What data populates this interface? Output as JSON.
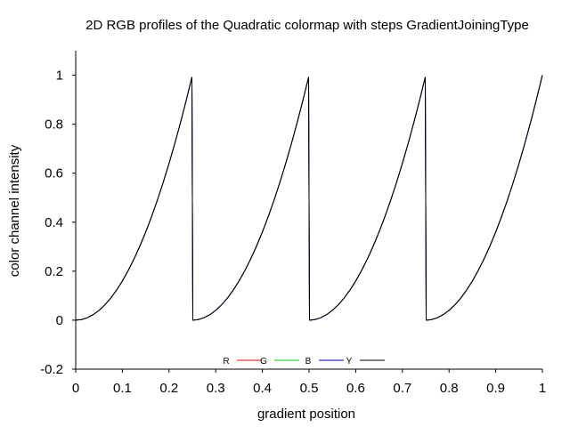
{
  "chart_data": {
    "type": "line",
    "title": "2D RGB profiles of the Quadratic colormap with steps GradientJoiningType",
    "xlabel": "gradient position",
    "ylabel": "color channel intensity",
    "xlim": [
      0,
      1
    ],
    "ylim": [
      -0.2,
      1.1
    ],
    "x_ticks": [
      "0",
      "0.1",
      "0.2",
      "0.3",
      "0.4",
      "0.5",
      "0.6",
      "0.7",
      "0.8",
      "0.9",
      "1"
    ],
    "y_ticks": [
      "-0.2",
      "0",
      "0.2",
      "0.4",
      "0.6",
      "0.8",
      "1"
    ],
    "x_tick_values": [
      0,
      0.1,
      0.2,
      0.3,
      0.4,
      0.5,
      0.6,
      0.7,
      0.8,
      0.9,
      1
    ],
    "y_tick_values": [
      -0.2,
      0,
      0.2,
      0.4,
      0.6,
      0.8,
      1
    ],
    "grid": false,
    "legend_placement": "bottom-center",
    "series": [
      {
        "name": "R",
        "color": "#ff0000",
        "x": [
          0,
          0.0125,
          0.025,
          0.0375,
          0.05,
          0.0625,
          0.075,
          0.0875,
          0.1,
          0.1125,
          0.125,
          0.1375,
          0.15,
          0.1625,
          0.175,
          0.1875,
          0.2,
          0.2125,
          0.225,
          0.2375,
          0.249,
          0.251,
          0.2625,
          0.275,
          0.2875,
          0.3,
          0.3125,
          0.325,
          0.3375,
          0.35,
          0.3625,
          0.375,
          0.3875,
          0.4,
          0.4125,
          0.425,
          0.4375,
          0.45,
          0.4625,
          0.475,
          0.4875,
          0.499,
          0.501,
          0.5125,
          0.525,
          0.5375,
          0.55,
          0.5625,
          0.575,
          0.5875,
          0.6,
          0.6125,
          0.625,
          0.6375,
          0.65,
          0.6625,
          0.675,
          0.6875,
          0.7,
          0.7125,
          0.725,
          0.7375,
          0.749,
          0.751,
          0.7625,
          0.775,
          0.7875,
          0.8,
          0.8125,
          0.825,
          0.8375,
          0.85,
          0.8625,
          0.875,
          0.8875,
          0.9,
          0.9125,
          0.925,
          0.9375,
          0.95,
          0.9625,
          0.975,
          0.9875,
          1
        ],
        "y": [
          0,
          0.0025,
          0.01,
          0.0225,
          0.04,
          0.0625,
          0.09,
          0.1225,
          0.16,
          0.2025,
          0.25,
          0.3025,
          0.36,
          0.4225,
          0.49,
          0.5625,
          0.64,
          0.7225,
          0.81,
          0.9025,
          0.992,
          0,
          0.0025,
          0.01,
          0.0225,
          0.04,
          0.0625,
          0.09,
          0.1225,
          0.16,
          0.2025,
          0.25,
          0.3025,
          0.36,
          0.4225,
          0.49,
          0.5625,
          0.64,
          0.7225,
          0.81,
          0.9025,
          0.992,
          0,
          0.0025,
          0.01,
          0.0225,
          0.04,
          0.0625,
          0.09,
          0.1225,
          0.16,
          0.2025,
          0.25,
          0.3025,
          0.36,
          0.4225,
          0.49,
          0.5625,
          0.64,
          0.7225,
          0.81,
          0.9025,
          0.992,
          0,
          0.0025,
          0.01,
          0.0225,
          0.04,
          0.0625,
          0.09,
          0.1225,
          0.16,
          0.2025,
          0.25,
          0.3025,
          0.36,
          0.4225,
          0.49,
          0.5625,
          0.64,
          0.7225,
          0.81,
          0.9025,
          1
        ]
      },
      {
        "name": "G",
        "color": "#00cc00",
        "x": [
          0,
          0.0125,
          0.025,
          0.0375,
          0.05,
          0.0625,
          0.075,
          0.0875,
          0.1,
          0.1125,
          0.125,
          0.1375,
          0.15,
          0.1625,
          0.175,
          0.1875,
          0.2,
          0.2125,
          0.225,
          0.2375,
          0.249,
          0.251,
          0.2625,
          0.275,
          0.2875,
          0.3,
          0.3125,
          0.325,
          0.3375,
          0.35,
          0.3625,
          0.375,
          0.3875,
          0.4,
          0.4125,
          0.425,
          0.4375,
          0.45,
          0.4625,
          0.475,
          0.4875,
          0.499,
          0.501,
          0.5125,
          0.525,
          0.5375,
          0.55,
          0.5625,
          0.575,
          0.5875,
          0.6,
          0.6125,
          0.625,
          0.6375,
          0.65,
          0.6625,
          0.675,
          0.6875,
          0.7,
          0.7125,
          0.725,
          0.7375,
          0.749,
          0.751,
          0.7625,
          0.775,
          0.7875,
          0.8,
          0.8125,
          0.825,
          0.8375,
          0.85,
          0.8625,
          0.875,
          0.8875,
          0.9,
          0.9125,
          0.925,
          0.9375,
          0.95,
          0.9625,
          0.975,
          0.9875,
          1
        ],
        "y": [
          0,
          0.0025,
          0.01,
          0.0225,
          0.04,
          0.0625,
          0.09,
          0.1225,
          0.16,
          0.2025,
          0.25,
          0.3025,
          0.36,
          0.4225,
          0.49,
          0.5625,
          0.64,
          0.7225,
          0.81,
          0.9025,
          0.992,
          0,
          0.0025,
          0.01,
          0.0225,
          0.04,
          0.0625,
          0.09,
          0.1225,
          0.16,
          0.2025,
          0.25,
          0.3025,
          0.36,
          0.4225,
          0.49,
          0.5625,
          0.64,
          0.7225,
          0.81,
          0.9025,
          0.992,
          0,
          0.0025,
          0.01,
          0.0225,
          0.04,
          0.0625,
          0.09,
          0.1225,
          0.16,
          0.2025,
          0.25,
          0.3025,
          0.36,
          0.4225,
          0.49,
          0.5625,
          0.64,
          0.7225,
          0.81,
          0.9025,
          0.992,
          0,
          0.0025,
          0.01,
          0.0225,
          0.04,
          0.0625,
          0.09,
          0.1225,
          0.16,
          0.2025,
          0.25,
          0.3025,
          0.36,
          0.4225,
          0.49,
          0.5625,
          0.64,
          0.7225,
          0.81,
          0.9025,
          1
        ]
      },
      {
        "name": "B",
        "color": "#0000cc",
        "x": [
          0,
          0.0125,
          0.025,
          0.0375,
          0.05,
          0.0625,
          0.075,
          0.0875,
          0.1,
          0.1125,
          0.125,
          0.1375,
          0.15,
          0.1625,
          0.175,
          0.1875,
          0.2,
          0.2125,
          0.225,
          0.2375,
          0.249,
          0.251,
          0.2625,
          0.275,
          0.2875,
          0.3,
          0.3125,
          0.325,
          0.3375,
          0.35,
          0.3625,
          0.375,
          0.3875,
          0.4,
          0.4125,
          0.425,
          0.4375,
          0.45,
          0.4625,
          0.475,
          0.4875,
          0.499,
          0.501,
          0.5125,
          0.525,
          0.5375,
          0.55,
          0.5625,
          0.575,
          0.5875,
          0.6,
          0.6125,
          0.625,
          0.6375,
          0.65,
          0.6625,
          0.675,
          0.6875,
          0.7,
          0.7125,
          0.725,
          0.7375,
          0.749,
          0.751,
          0.7625,
          0.775,
          0.7875,
          0.8,
          0.8125,
          0.825,
          0.8375,
          0.85,
          0.8625,
          0.875,
          0.8875,
          0.9,
          0.9125,
          0.925,
          0.9375,
          0.95,
          0.9625,
          0.975,
          0.9875,
          1
        ],
        "y": [
          0,
          0.0025,
          0.01,
          0.0225,
          0.04,
          0.0625,
          0.09,
          0.1225,
          0.16,
          0.2025,
          0.25,
          0.3025,
          0.36,
          0.4225,
          0.49,
          0.5625,
          0.64,
          0.7225,
          0.81,
          0.9025,
          0.992,
          0,
          0.0025,
          0.01,
          0.0225,
          0.04,
          0.0625,
          0.09,
          0.1225,
          0.16,
          0.2025,
          0.25,
          0.3025,
          0.36,
          0.4225,
          0.49,
          0.5625,
          0.64,
          0.7225,
          0.81,
          0.9025,
          0.992,
          0,
          0.0025,
          0.01,
          0.0225,
          0.04,
          0.0625,
          0.09,
          0.1225,
          0.16,
          0.2025,
          0.25,
          0.3025,
          0.36,
          0.4225,
          0.49,
          0.5625,
          0.64,
          0.7225,
          0.81,
          0.9025,
          0.992,
          0,
          0.0025,
          0.01,
          0.0225,
          0.04,
          0.0625,
          0.09,
          0.1225,
          0.16,
          0.2025,
          0.25,
          0.3025,
          0.36,
          0.4225,
          0.49,
          0.5625,
          0.64,
          0.7225,
          0.81,
          0.9025,
          1
        ]
      },
      {
        "name": "Y",
        "color": "#000000",
        "x": [
          0,
          0.0125,
          0.025,
          0.0375,
          0.05,
          0.0625,
          0.075,
          0.0875,
          0.1,
          0.1125,
          0.125,
          0.1375,
          0.15,
          0.1625,
          0.175,
          0.1875,
          0.2,
          0.2125,
          0.225,
          0.2375,
          0.249,
          0.251,
          0.2625,
          0.275,
          0.2875,
          0.3,
          0.3125,
          0.325,
          0.3375,
          0.35,
          0.3625,
          0.375,
          0.3875,
          0.4,
          0.4125,
          0.425,
          0.4375,
          0.45,
          0.4625,
          0.475,
          0.4875,
          0.499,
          0.501,
          0.5125,
          0.525,
          0.5375,
          0.55,
          0.5625,
          0.575,
          0.5875,
          0.6,
          0.6125,
          0.625,
          0.6375,
          0.65,
          0.6625,
          0.675,
          0.6875,
          0.7,
          0.7125,
          0.725,
          0.7375,
          0.749,
          0.751,
          0.7625,
          0.775,
          0.7875,
          0.8,
          0.8125,
          0.825,
          0.8375,
          0.85,
          0.8625,
          0.875,
          0.8875,
          0.9,
          0.9125,
          0.925,
          0.9375,
          0.95,
          0.9625,
          0.975,
          0.9875,
          1
        ],
        "y": [
          0,
          0.0025,
          0.01,
          0.0225,
          0.04,
          0.0625,
          0.09,
          0.1225,
          0.16,
          0.2025,
          0.25,
          0.3025,
          0.36,
          0.4225,
          0.49,
          0.5625,
          0.64,
          0.7225,
          0.81,
          0.9025,
          0.992,
          0,
          0.0025,
          0.01,
          0.0225,
          0.04,
          0.0625,
          0.09,
          0.1225,
          0.16,
          0.2025,
          0.25,
          0.3025,
          0.36,
          0.4225,
          0.49,
          0.5625,
          0.64,
          0.7225,
          0.81,
          0.9025,
          0.992,
          0,
          0.0025,
          0.01,
          0.0225,
          0.04,
          0.0625,
          0.09,
          0.1225,
          0.16,
          0.2025,
          0.25,
          0.3025,
          0.36,
          0.4225,
          0.49,
          0.5625,
          0.64,
          0.7225,
          0.81,
          0.9025,
          0.992,
          0,
          0.0025,
          0.01,
          0.0225,
          0.04,
          0.0625,
          0.09,
          0.1225,
          0.16,
          0.2025,
          0.25,
          0.3025,
          0.36,
          0.4225,
          0.49,
          0.5625,
          0.64,
          0.7225,
          0.81,
          0.9025,
          1
        ]
      }
    ]
  }
}
